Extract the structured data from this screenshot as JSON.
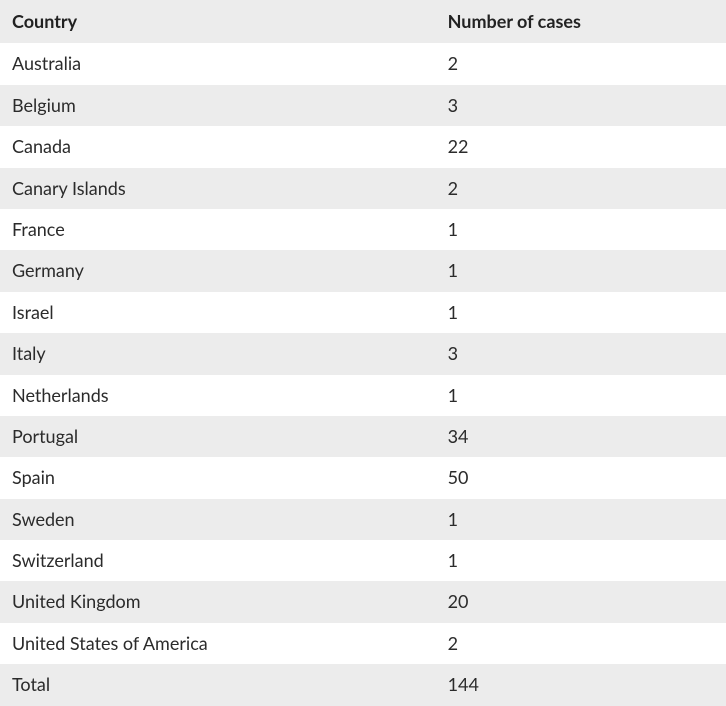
{
  "table": {
    "type": "table",
    "background_color": "#ffffff",
    "header_bg": "#ececec",
    "row_odd_bg": "#ffffff",
    "row_even_bg": "#ececec",
    "text_color": "#2b2b2b",
    "header_font_weight": 700,
    "body_font_weight": 400,
    "font_size_pt": 14,
    "columns": [
      {
        "key": "country",
        "label": "Country",
        "width_pct": 60,
        "align": "left"
      },
      {
        "key": "cases",
        "label": "Number of cases",
        "width_pct": 40,
        "align": "left"
      }
    ],
    "rows": [
      {
        "country": "Australia",
        "cases": 2
      },
      {
        "country": "Belgium",
        "cases": 3
      },
      {
        "country": "Canada",
        "cases": 22
      },
      {
        "country": "Canary Islands",
        "cases": 2
      },
      {
        "country": "France",
        "cases": 1
      },
      {
        "country": "Germany",
        "cases": 1
      },
      {
        "country": "Israel",
        "cases": 1
      },
      {
        "country": "Italy",
        "cases": 3
      },
      {
        "country": "Netherlands",
        "cases": 1
      },
      {
        "country": "Portugal",
        "cases": 34
      },
      {
        "country": "Spain",
        "cases": 50
      },
      {
        "country": "Sweden",
        "cases": 1
      },
      {
        "country": "Switzerland",
        "cases": 1
      },
      {
        "country": "United Kingdom",
        "cases": 20
      },
      {
        "country": "United States of America",
        "cases": 2
      },
      {
        "country": "Total",
        "cases": 144
      }
    ]
  }
}
